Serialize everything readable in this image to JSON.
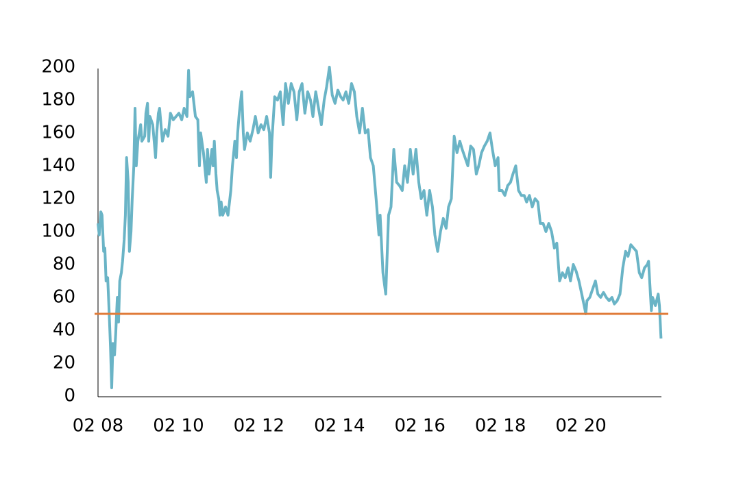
{
  "chart_data": {
    "type": "line",
    "x": [
      8.0,
      8.03,
      8.07,
      8.1,
      8.14,
      8.17,
      8.2,
      8.24,
      8.27,
      8.31,
      8.34,
      8.37,
      8.41,
      8.44,
      8.48,
      8.51,
      8.54,
      8.58,
      8.61,
      8.65,
      8.68,
      8.71,
      8.75,
      8.78,
      8.82,
      8.85,
      8.89,
      8.92,
      8.95,
      8.99,
      9.06,
      9.09,
      9.16,
      9.19,
      9.23,
      9.26,
      9.29,
      9.36,
      9.43,
      9.46,
      9.5,
      9.53,
      9.6,
      9.67,
      9.74,
      9.8,
      9.87,
      9.94,
      10.01,
      10.08,
      10.14,
      10.21,
      10.25,
      10.28,
      10.35,
      10.42,
      10.48,
      10.52,
      10.55,
      10.62,
      10.69,
      10.72,
      10.76,
      10.83,
      10.86,
      10.89,
      10.93,
      10.96,
      11.0,
      11.03,
      11.06,
      11.1,
      11.17,
      11.23,
      11.3,
      11.34,
      11.4,
      11.44,
      11.47,
      11.51,
      11.57,
      11.61,
      11.64,
      11.71,
      11.78,
      11.85,
      11.91,
      11.98,
      12.05,
      12.12,
      12.19,
      12.26,
      12.29,
      12.32,
      12.39,
      12.46,
      12.53,
      12.6,
      12.66,
      12.73,
      12.8,
      12.87,
      12.94,
      13.0,
      13.07,
      13.14,
      13.21,
      13.28,
      13.34,
      13.41,
      13.48,
      13.55,
      13.62,
      13.68,
      13.75,
      13.82,
      13.89,
      13.96,
      14.03,
      14.09,
      14.16,
      14.23,
      14.3,
      14.37,
      14.43,
      14.5,
      14.57,
      14.64,
      14.71,
      14.77,
      14.84,
      14.91,
      14.98,
      15.01,
      15.08,
      15.15,
      15.22,
      15.28,
      15.35,
      15.42,
      15.49,
      15.56,
      15.62,
      15.69,
      15.76,
      15.83,
      15.9,
      15.97,
      16.03,
      16.1,
      16.17,
      16.24,
      16.31,
      16.37,
      16.44,
      16.51,
      16.58,
      16.65,
      16.71,
      16.78,
      16.85,
      16.92,
      16.99,
      17.05,
      17.12,
      17.19,
      17.26,
      17.33,
      17.4,
      17.46,
      17.53,
      17.6,
      17.67,
      17.74,
      17.8,
      17.87,
      17.94,
      17.97,
      18.04,
      18.11,
      18.18,
      18.25,
      18.31,
      18.38,
      18.45,
      18.52,
      18.59,
      18.65,
      18.72,
      18.79,
      18.86,
      18.93,
      18.99,
      19.06,
      19.13,
      19.2,
      19.27,
      19.34,
      19.4,
      19.47,
      19.54,
      19.61,
      19.68,
      19.74,
      19.81,
      19.88,
      19.95,
      20.02,
      20.08,
      20.12,
      20.15,
      20.22,
      20.29,
      20.36,
      20.42,
      20.49,
      20.56,
      20.63,
      20.7,
      20.77,
      20.83,
      20.9,
      20.97,
      21.04,
      21.11,
      21.17,
      21.24,
      21.31,
      21.38,
      21.45,
      21.51,
      21.58,
      21.65,
      21.68,
      21.75,
      21.78,
      21.85,
      21.92,
      21.95,
      21.99
    ],
    "values": [
      105,
      98,
      112,
      110,
      88,
      90,
      70,
      72,
      55,
      30,
      5,
      32,
      25,
      38,
      60,
      45,
      70,
      75,
      82,
      95,
      110,
      145,
      130,
      88,
      100,
      120,
      140,
      175,
      140,
      155,
      165,
      155,
      158,
      172,
      178,
      155,
      170,
      165,
      145,
      160,
      172,
      175,
      155,
      162,
      158,
      172,
      168,
      170,
      172,
      168,
      175,
      170,
      198,
      182,
      185,
      170,
      168,
      140,
      160,
      148,
      130,
      150,
      135,
      150,
      140,
      155,
      135,
      125,
      120,
      110,
      118,
      110,
      115,
      110,
      125,
      140,
      155,
      145,
      160,
      172,
      185,
      160,
      150,
      160,
      155,
      162,
      170,
      160,
      165,
      162,
      170,
      160,
      133,
      155,
      182,
      180,
      185,
      165,
      190,
      178,
      190,
      185,
      168,
      185,
      190,
      172,
      185,
      180,
      170,
      185,
      175,
      165,
      180,
      188,
      200,
      183,
      178,
      186,
      182,
      180,
      185,
      178,
      190,
      185,
      170,
      160,
      175,
      160,
      162,
      145,
      140,
      120,
      98,
      110,
      75,
      62,
      110,
      115,
      150,
      130,
      128,
      125,
      140,
      130,
      150,
      135,
      150,
      130,
      120,
      125,
      110,
      125,
      115,
      98,
      88,
      100,
      108,
      102,
      115,
      120,
      158,
      148,
      155,
      150,
      145,
      140,
      152,
      150,
      135,
      140,
      148,
      152,
      155,
      160,
      150,
      140,
      145,
      125,
      125,
      122,
      128,
      130,
      135,
      140,
      125,
      122,
      122,
      118,
      122,
      115,
      120,
      118,
      105,
      105,
      100,
      105,
      100,
      90,
      93,
      70,
      75,
      72,
      78,
      70,
      80,
      76,
      70,
      62,
      55,
      50,
      58,
      60,
      65,
      70,
      62,
      60,
      63,
      60,
      58,
      60,
      56,
      58,
      62,
      78,
      88,
      85,
      92,
      90,
      88,
      75,
      72,
      78,
      80,
      82,
      52,
      60,
      55,
      62,
      55,
      35
    ],
    "color": "#6ab4c6",
    "hline": 50,
    "hline_color": "#e07b39",
    "xlim": [
      8,
      22
    ],
    "xticks": [
      {
        "value": 8,
        "label": "02 08"
      },
      {
        "value": 10,
        "label": "02 10"
      },
      {
        "value": 12,
        "label": "02 12"
      },
      {
        "value": 14,
        "label": "02 14"
      },
      {
        "value": 16,
        "label": "02 16"
      },
      {
        "value": 18,
        "label": "02 18"
      },
      {
        "value": 20,
        "label": "02 20"
      }
    ],
    "ylim": [
      0,
      200
    ],
    "yticks": [
      0,
      20,
      40,
      60,
      80,
      100,
      120,
      140,
      160,
      180,
      200
    ],
    "grid": false
  }
}
